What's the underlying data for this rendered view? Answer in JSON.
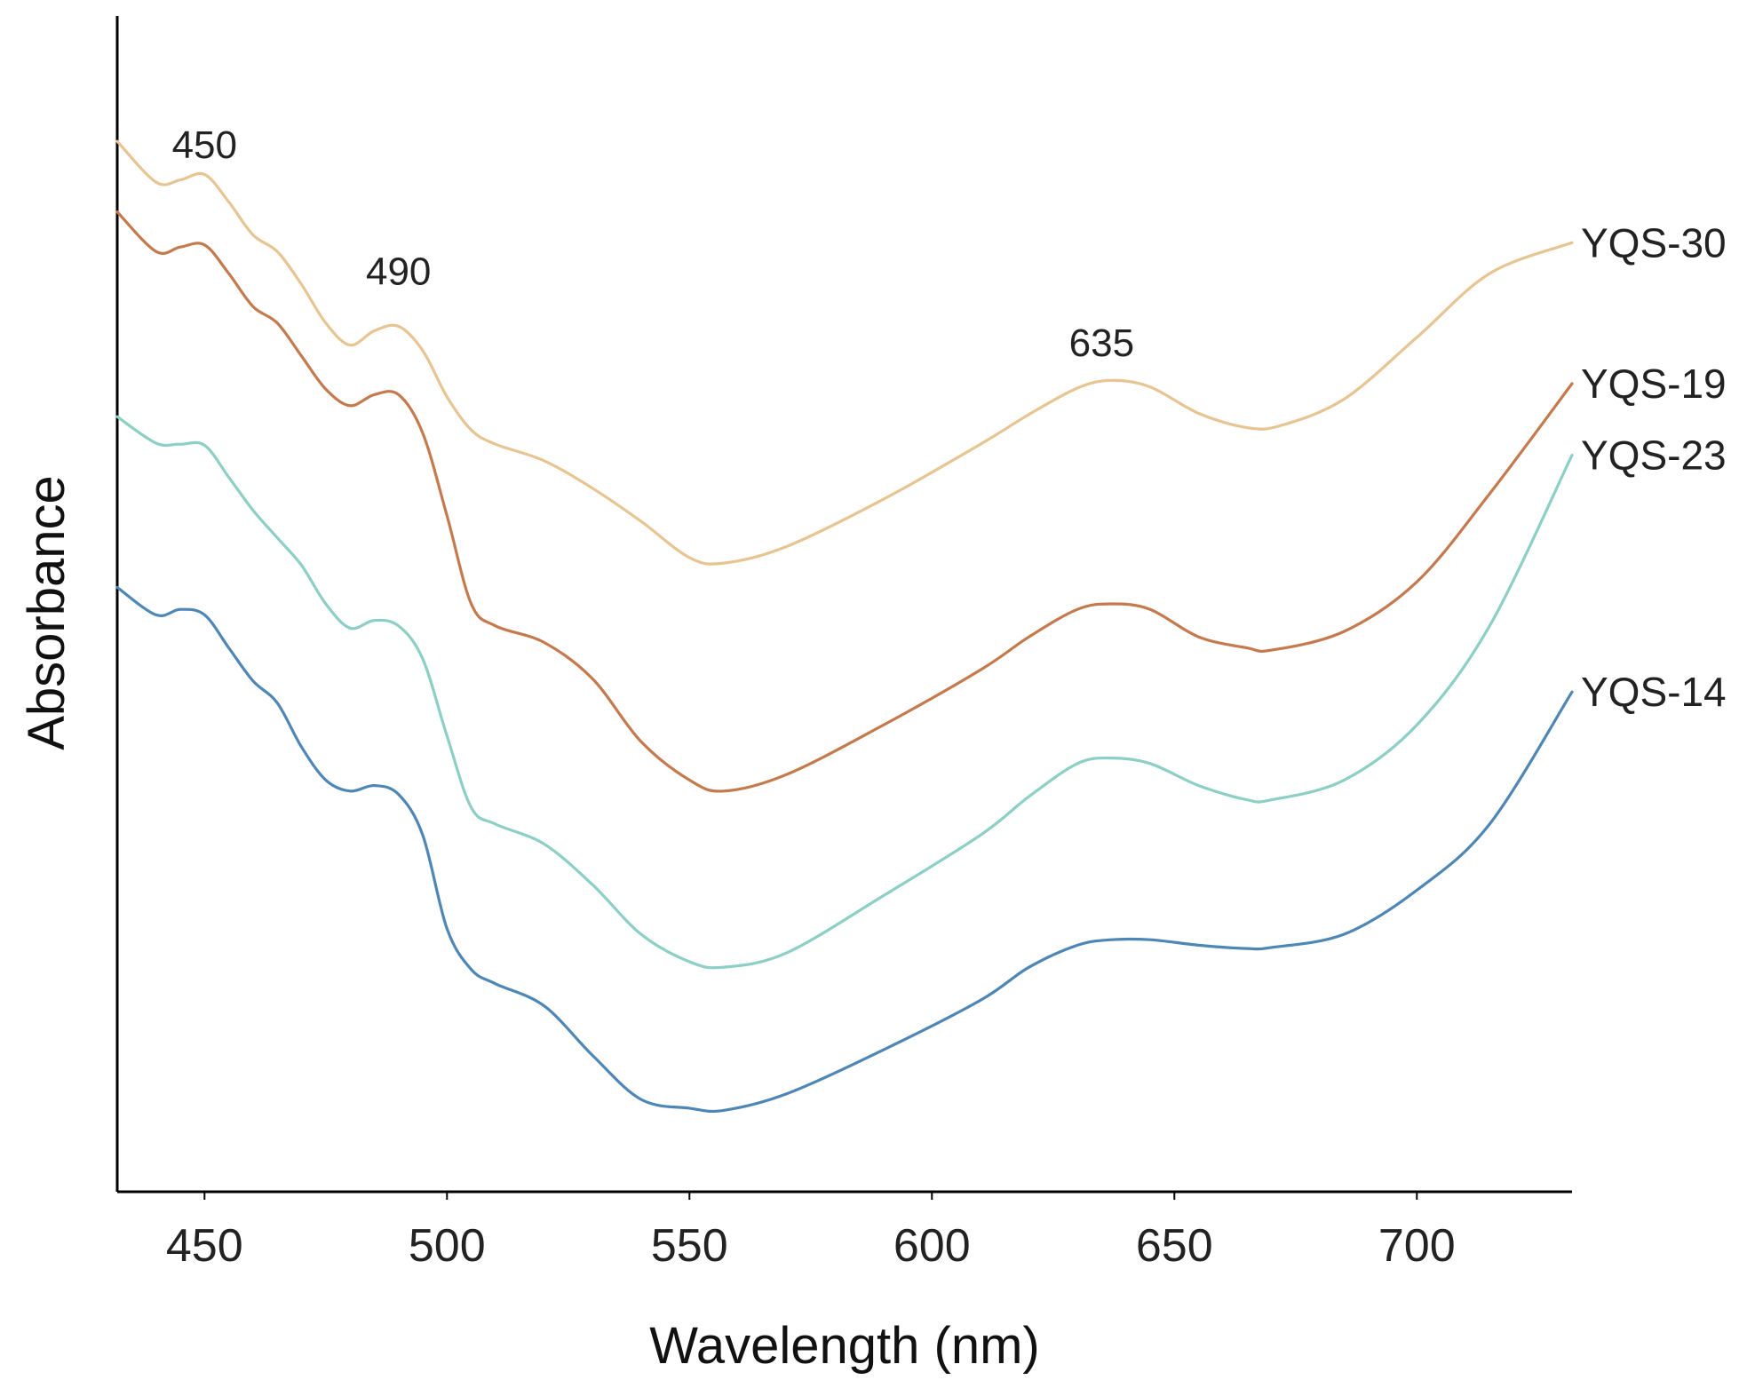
{
  "chart_data": {
    "type": "line",
    "title": "",
    "xlabel": "Wavelength (nm)",
    "ylabel": "Absorbance",
    "xlim": [
      432,
      732
    ],
    "ylim": [
      0,
      1
    ],
    "xticks": [
      450,
      500,
      550,
      600,
      650,
      700
    ],
    "yticks": [],
    "grid": false,
    "legend": "series labels placed at right end of each curve",
    "annotations": [
      {
        "text": "450",
        "x": 450,
        "y": 0.905
      },
      {
        "text": "490",
        "x": 490,
        "y": 0.79
      },
      {
        "text": "635",
        "x": 635,
        "y": 0.725
      }
    ],
    "series": [
      {
        "name": "YQS-30",
        "color": "#E7C592",
        "x": [
          432,
          440,
          445,
          450,
          455,
          460,
          465,
          470,
          475,
          480,
          485,
          490,
          495,
          500,
          505,
          510,
          520,
          530,
          540,
          550,
          557,
          570,
          590,
          610,
          620,
          630,
          637,
          645,
          655,
          665,
          672,
          685,
          700,
          715,
          732
        ],
        "y": [
          0.92,
          0.883,
          0.885,
          0.89,
          0.865,
          0.835,
          0.82,
          0.79,
          0.755,
          0.735,
          0.748,
          0.752,
          0.73,
          0.688,
          0.658,
          0.645,
          0.63,
          0.605,
          0.575,
          0.542,
          0.537,
          0.552,
          0.595,
          0.645,
          0.672,
          0.696,
          0.703,
          0.697,
          0.673,
          0.66,
          0.662,
          0.686,
          0.742,
          0.8,
          0.828
        ]
      },
      {
        "name": "YQS-19",
        "color": "#C47A4D",
        "x": [
          432,
          440,
          445,
          450,
          455,
          460,
          465,
          470,
          475,
          480,
          485,
          490,
          495,
          500,
          505,
          510,
          520,
          530,
          540,
          550,
          557,
          570,
          590,
          610,
          620,
          630,
          637,
          645,
          655,
          665,
          670,
          685,
          700,
          715,
          732
        ],
        "y": [
          0.856,
          0.82,
          0.824,
          0.826,
          0.8,
          0.77,
          0.755,
          0.725,
          0.695,
          0.68,
          0.69,
          0.69,
          0.655,
          0.58,
          0.5,
          0.48,
          0.465,
          0.432,
          0.375,
          0.34,
          0.33,
          0.345,
          0.39,
          0.44,
          0.47,
          0.495,
          0.5,
          0.495,
          0.47,
          0.46,
          0.458,
          0.475,
          0.52,
          0.6,
          0.7
        ]
      },
      {
        "name": "YQS-23",
        "color": "#8BCFC5",
        "x": [
          432,
          440,
          445,
          450,
          455,
          460,
          465,
          470,
          475,
          480,
          485,
          490,
          495,
          500,
          505,
          510,
          520,
          530,
          540,
          550,
          557,
          570,
          590,
          610,
          620,
          630,
          637,
          645,
          655,
          665,
          670,
          685,
          700,
          715,
          732
        ],
        "y": [
          0.67,
          0.646,
          0.645,
          0.644,
          0.615,
          0.585,
          0.56,
          0.535,
          0.5,
          0.478,
          0.485,
          0.48,
          0.45,
          0.38,
          0.315,
          0.3,
          0.282,
          0.245,
          0.2,
          0.175,
          0.17,
          0.183,
          0.235,
          0.29,
          0.325,
          0.355,
          0.36,
          0.355,
          0.335,
          0.322,
          0.322,
          0.34,
          0.39,
          0.48,
          0.635
        ]
      },
      {
        "name": "YQS-14",
        "color": "#4E86B5",
        "x": [
          432,
          440,
          445,
          450,
          455,
          460,
          465,
          470,
          475,
          480,
          485,
          490,
          495,
          500,
          505,
          510,
          520,
          530,
          540,
          550,
          557,
          570,
          590,
          610,
          620,
          630,
          637,
          645,
          655,
          665,
          670,
          685,
          700,
          715,
          732
        ],
        "y": [
          0.515,
          0.49,
          0.495,
          0.49,
          0.46,
          0.43,
          0.41,
          0.37,
          0.34,
          0.33,
          0.335,
          0.327,
          0.29,
          0.205,
          0.168,
          0.155,
          0.135,
          0.09,
          0.05,
          0.042,
          0.04,
          0.055,
          0.095,
          0.14,
          0.17,
          0.19,
          0.195,
          0.195,
          0.19,
          0.187,
          0.188,
          0.2,
          0.24,
          0.3,
          0.42
        ]
      }
    ]
  }
}
